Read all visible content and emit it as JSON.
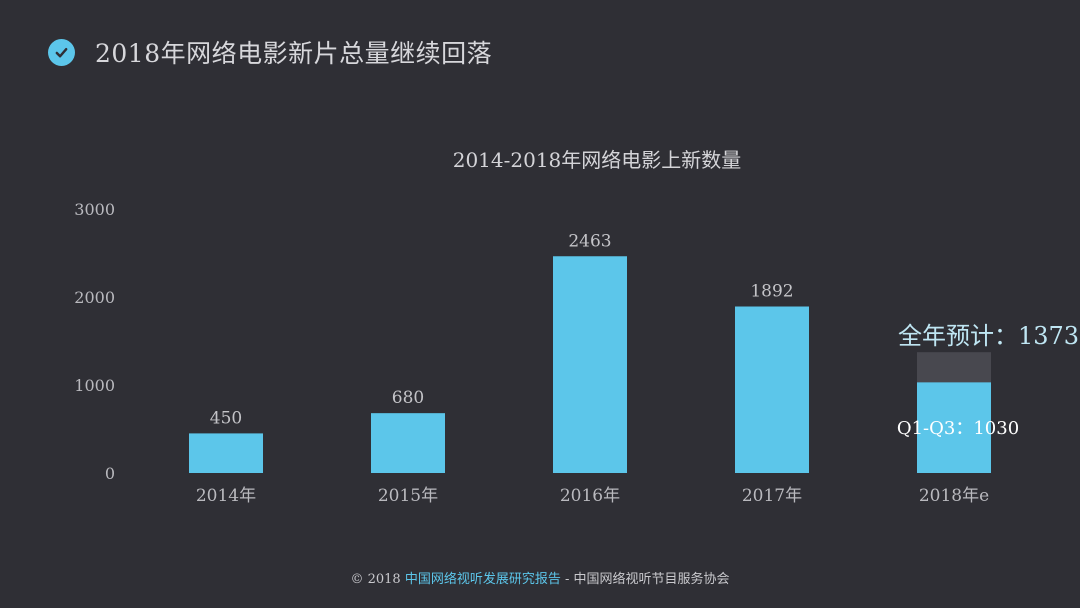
{
  "header": {
    "title": "2018年网络电影新片总量继续回落",
    "icon": "check-circle-icon"
  },
  "footer": {
    "prefix": "© 2018 ",
    "report": "中国网络视听发展研究报告",
    "separator": " - ",
    "publisher": "中国网络视听节目服务协会"
  },
  "colors": {
    "background": "#2f2f35",
    "bar": "#5cc6ea",
    "forecast": "#48484f",
    "annotation": "#bfe6f3"
  },
  "chart_data": {
    "type": "bar",
    "title": "2014-2018年网络电影上新数量",
    "categories": [
      "2014年",
      "2015年",
      "2016年",
      "2017年",
      "2018年e"
    ],
    "values": [
      450,
      680,
      2463,
      1892,
      1030
    ],
    "data_labels": [
      "450",
      "680",
      "2463",
      "1892",
      ""
    ],
    "forecast": {
      "category": "2018年e",
      "total": 1373,
      "actual": 1030
    },
    "annotations": {
      "total_label": "全年预计：1373",
      "partial_label": "Q1-Q3：1030"
    },
    "ylim": [
      0,
      3000
    ],
    "yticks": [
      0,
      1000,
      2000,
      3000
    ],
    "grid": false,
    "xlabel": "",
    "ylabel": ""
  }
}
